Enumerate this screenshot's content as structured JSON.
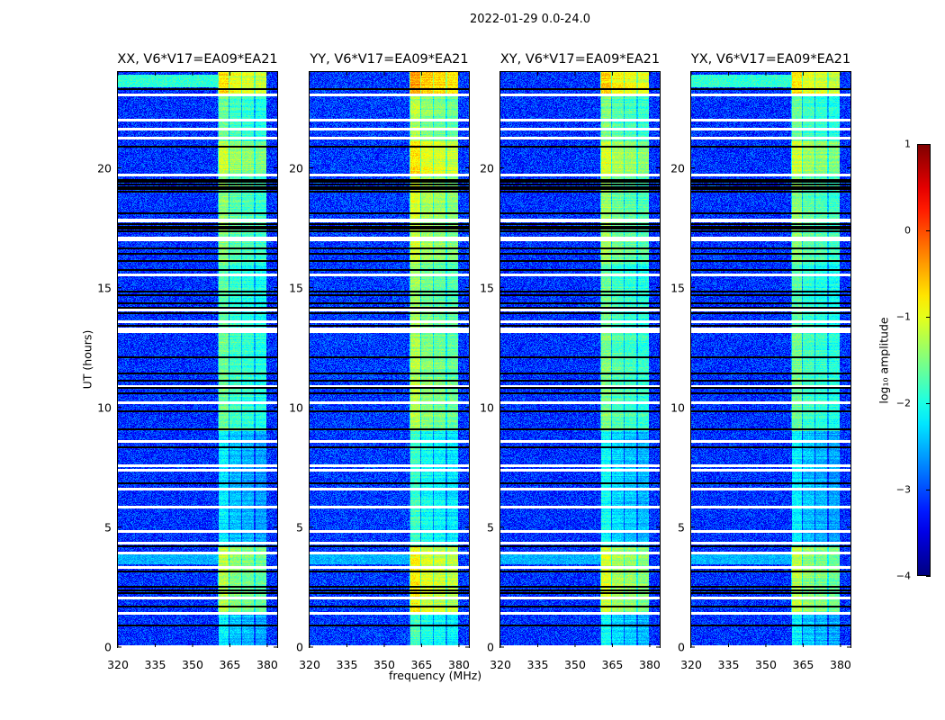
{
  "figure_title": "2022-01-29 0.0-24.0",
  "xlabel": "frequency (MHz)",
  "ylabel": "UT (hours)",
  "chart_data": {
    "type": "heatmap",
    "title": "2022-01-29 0.0-24.0",
    "xlabel": "frequency (MHz)",
    "ylabel": "UT (hours)",
    "x_range": [
      320,
      384
    ],
    "y_range": [
      0,
      24
    ],
    "x_ticks": [
      320,
      335,
      350,
      365,
      380
    ],
    "y_ticks": [
      0,
      5,
      10,
      15,
      20
    ],
    "panels": [
      {
        "title": "XX, V6*V17=EA09*EA21",
        "band_offset": 0.0,
        "bg_offset": 0.0
      },
      {
        "title": "YY, V6*V17=EA09*EA21",
        "band_offset": 0.35,
        "bg_offset": 0.05
      },
      {
        "title": "XY, V6*V17=EA09*EA21",
        "band_offset": 0.1,
        "bg_offset": 0.0
      },
      {
        "title": "YX, V6*V17=EA09*EA21",
        "band_offset": 0.0,
        "bg_offset": 0.0
      }
    ],
    "background_level": -3.15,
    "rfi_subbands_mhz": [
      [
        360.5,
        364.6
      ],
      [
        365.0,
        369.6
      ],
      [
        370.0,
        374.6
      ],
      [
        375.4,
        379.7
      ]
    ],
    "band_level_by_time": [
      {
        "from": 0.0,
        "to": 1.4,
        "level": -2.3
      },
      {
        "from": 1.4,
        "to": 4.2,
        "level": -1.35
      },
      {
        "from": 4.2,
        "to": 9.0,
        "level": -2.35
      },
      {
        "from": 9.0,
        "to": 13.1,
        "level": -1.75
      },
      {
        "from": 13.1,
        "to": 16.0,
        "level": -1.85
      },
      {
        "from": 16.0,
        "to": 19.7,
        "level": -1.6
      },
      {
        "from": 19.7,
        "to": 21.1,
        "level": -1.3
      },
      {
        "from": 21.1,
        "to": 23.1,
        "level": -1.75
      },
      {
        "from": 23.1,
        "to": 24.0,
        "level": -0.9
      }
    ],
    "background_bright_by_time": [
      {
        "from": 3.45,
        "to": 3.95,
        "level": -2.5
      },
      {
        "from": 23.35,
        "to": 23.9,
        "level": -1.9
      }
    ],
    "flagged_white_hours": [
      0.05,
      1.43,
      2.05,
      3.35,
      3.95,
      4.35,
      4.85,
      5.85,
      6.6,
      7.4,
      7.6,
      8.6,
      10.2,
      10.9,
      13.2,
      13.3,
      13.6,
      14.1,
      15.55,
      17.0,
      17.1,
      17.8,
      17.85,
      19.7,
      21.25,
      21.65,
      22.0,
      23.05
    ],
    "flagged_black_hours": [
      0.9,
      1.7,
      2.25,
      2.35,
      2.5,
      3.15,
      4.2,
      6.85,
      8.35,
      9.1,
      9.85,
      10.6,
      10.8,
      11.1,
      11.4,
      12.1,
      13.4,
      13.95,
      14.15,
      14.35,
      14.7,
      14.85,
      15.75,
      16.1,
      16.4,
      16.65,
      17.35,
      17.45,
      17.55,
      17.65,
      18.1,
      19.0,
      19.1,
      19.2,
      19.3,
      19.4,
      19.5,
      20.9,
      23.3
    ],
    "colorbar": {
      "label": "log₁₀ amplitude",
      "colormap": "jet",
      "range": [
        -4,
        1
      ],
      "ticks": [
        1,
        0,
        -1,
        -2,
        -3,
        -4
      ],
      "tick_labels": [
        "1",
        "0",
        "−1",
        "−2",
        "−3",
        "−4"
      ]
    }
  }
}
